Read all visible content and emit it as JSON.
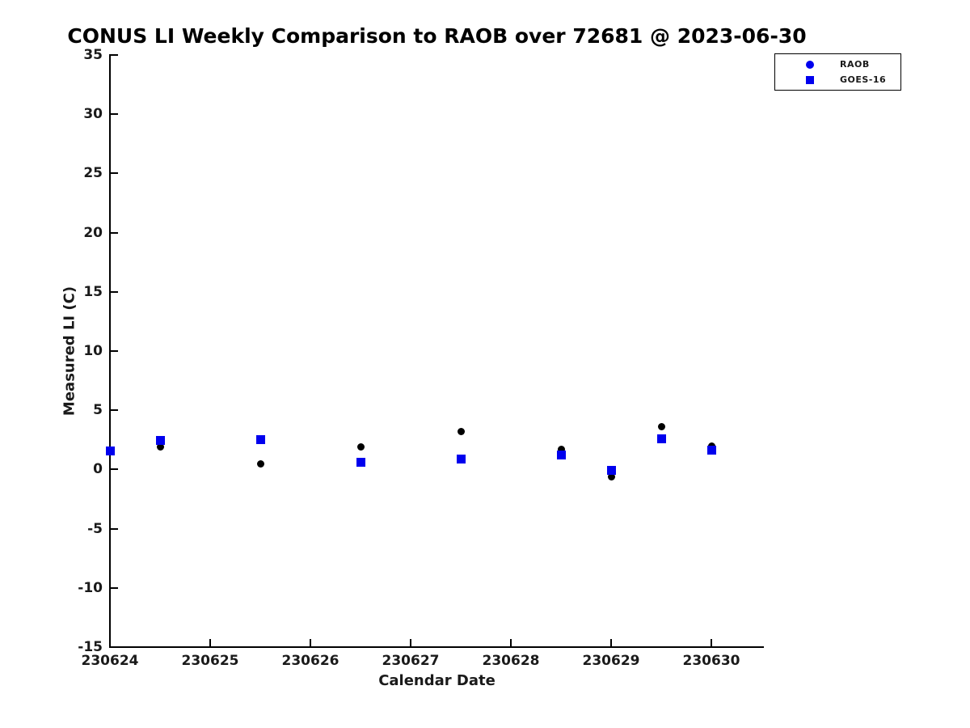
{
  "page": {
    "title": "CONUS LI Weekly Comparison to RAOB over 72681 @ 2023-06-30"
  },
  "colors": {
    "background": "#ffffff",
    "axis": "#000000",
    "text": "#1a1a1a",
    "raob_marker": "#000000",
    "goes16_marker": "#0000ee",
    "legend_marker": "#0000ee"
  },
  "chart_data": {
    "type": "scatter",
    "title": "CONUS LI Weekly Comparison to RAOB over 72681 @ 2023-06-30",
    "xlabel": "Calendar Date",
    "ylabel": "Measured LI (C)",
    "xlim": [
      230624,
      230630.52
    ],
    "ylim": [
      -15,
      35
    ],
    "grid": false,
    "box": "left-bottom-only",
    "legend_position": "outside-upper-right",
    "x_ticks": [
      230624,
      230625,
      230626,
      230627,
      230628,
      230629,
      230630
    ],
    "x_tick_labels": [
      "230624",
      "230625",
      "230626",
      "230627",
      "230628",
      "230629",
      "230630"
    ],
    "y_ticks": [
      35,
      30,
      25,
      20,
      15,
      10,
      5,
      0,
      -5,
      -10,
      -15
    ],
    "y_tick_labels": [
      "35",
      "30",
      "25",
      "20",
      "15",
      "10",
      "5",
      "0",
      "-5",
      "-10",
      "-15"
    ],
    "series": [
      {
        "name": "RAOB",
        "marker": "circle",
        "plot_color": "#000000",
        "legend_color": "#0000ee",
        "points": [
          {
            "x": 230624.0,
            "y": 1.55
          },
          {
            "x": 230624.5,
            "y": 1.9
          },
          {
            "x": 230625.5,
            "y": 0.5
          },
          {
            "x": 230626.5,
            "y": 1.9
          },
          {
            "x": 230627.5,
            "y": 3.2
          },
          {
            "x": 230628.5,
            "y": 1.7
          },
          {
            "x": 230629.0,
            "y": -0.6
          },
          {
            "x": 230629.5,
            "y": 3.6
          },
          {
            "x": 230630.0,
            "y": 2.0
          }
        ]
      },
      {
        "name": "GOES-16",
        "marker": "square",
        "plot_color": "#0000ee",
        "legend_color": "#0000ee",
        "points": [
          {
            "x": 230624.0,
            "y": 1.55
          },
          {
            "x": 230624.5,
            "y": 2.45
          },
          {
            "x": 230625.5,
            "y": 2.5
          },
          {
            "x": 230626.5,
            "y": 0.6
          },
          {
            "x": 230627.5,
            "y": 0.9
          },
          {
            "x": 230628.5,
            "y": 1.2
          },
          {
            "x": 230629.0,
            "y": -0.1
          },
          {
            "x": 230629.5,
            "y": 2.6
          },
          {
            "x": 230630.0,
            "y": 1.6
          }
        ]
      }
    ]
  }
}
